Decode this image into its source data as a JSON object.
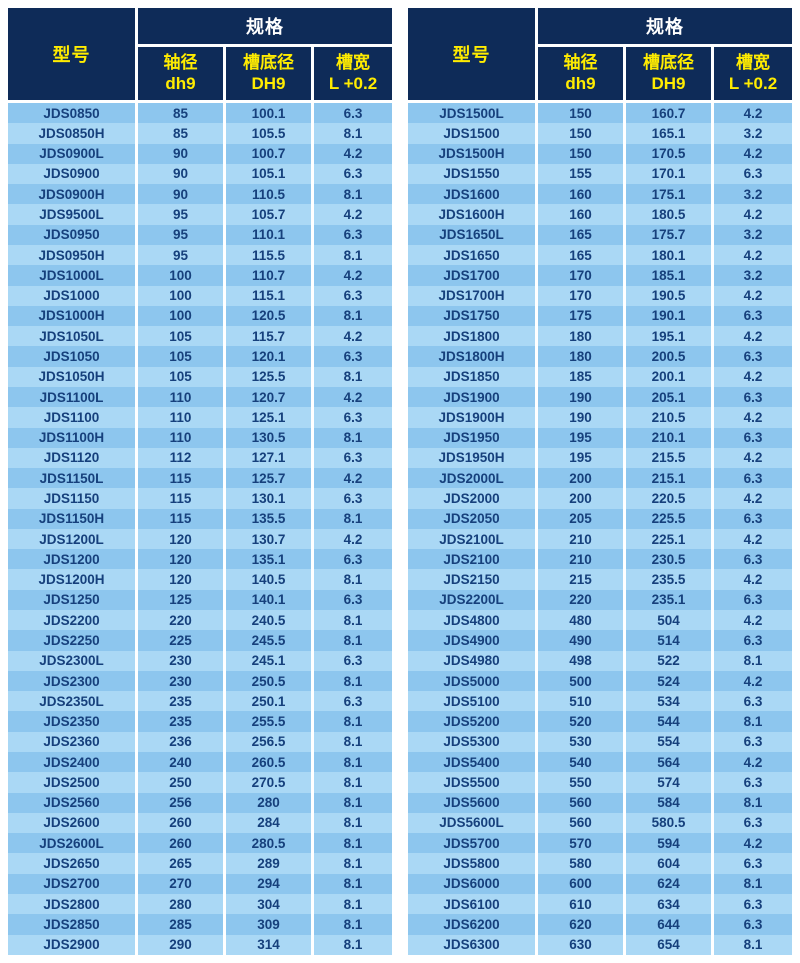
{
  "colors": {
    "header_background": "#0e2b58",
    "header_text_yellow": "#ffec00",
    "header_text_white": "#ffffff",
    "row_medium_blue": "#8dc6ee",
    "row_light_blue": "#aad8f5",
    "cell_text": "#16407c",
    "separator": "#ffffff"
  },
  "header": {
    "model_label": "型号",
    "spec_label": "规格",
    "sub_columns": [
      {
        "title": "轴径",
        "subtitle": "dh9"
      },
      {
        "title": "槽底径",
        "subtitle": "DH9"
      },
      {
        "title": "槽宽",
        "subtitle": "L +0.2"
      }
    ]
  },
  "tables": [
    {
      "id": "left",
      "rows": [
        [
          "JDS0850",
          "85",
          "100.1",
          "6.3"
        ],
        [
          "JDS0850H",
          "85",
          "105.5",
          "8.1"
        ],
        [
          "JDS0900L",
          "90",
          "100.7",
          "4.2"
        ],
        [
          "JDS0900",
          "90",
          "105.1",
          "6.3"
        ],
        [
          "JDS0900H",
          "90",
          "110.5",
          "8.1"
        ],
        [
          "JDS9500L",
          "95",
          "105.7",
          "4.2"
        ],
        [
          "JDS0950",
          "95",
          "110.1",
          "6.3"
        ],
        [
          "JDS0950H",
          "95",
          "115.5",
          "8.1"
        ],
        [
          "JDS1000L",
          "100",
          "110.7",
          "4.2"
        ],
        [
          "JDS1000",
          "100",
          "115.1",
          "6.3"
        ],
        [
          "JDS1000H",
          "100",
          "120.5",
          "8.1"
        ],
        [
          "JDS1050L",
          "105",
          "115.7",
          "4.2"
        ],
        [
          "JDS1050",
          "105",
          "120.1",
          "6.3"
        ],
        [
          "JDS1050H",
          "105",
          "125.5",
          "8.1"
        ],
        [
          "JDS1100L",
          "110",
          "120.7",
          "4.2"
        ],
        [
          "JDS1100",
          "110",
          "125.1",
          "6.3"
        ],
        [
          "JDS1100H",
          "110",
          "130.5",
          "8.1"
        ],
        [
          "JDS1120",
          "112",
          "127.1",
          "6.3"
        ],
        [
          "JDS1150L",
          "115",
          "125.7",
          "4.2"
        ],
        [
          "JDS1150",
          "115",
          "130.1",
          "6.3"
        ],
        [
          "JDS1150H",
          "115",
          "135.5",
          "8.1"
        ],
        [
          "JDS1200L",
          "120",
          "130.7",
          "4.2"
        ],
        [
          "JDS1200",
          "120",
          "135.1",
          "6.3"
        ],
        [
          "JDS1200H",
          "120",
          "140.5",
          "8.1"
        ],
        [
          "JDS1250",
          "125",
          "140.1",
          "6.3"
        ],
        [
          "JDS2200",
          "220",
          "240.5",
          "8.1"
        ],
        [
          "JDS2250",
          "225",
          "245.5",
          "8.1"
        ],
        [
          "JDS2300L",
          "230",
          "245.1",
          "6.3"
        ],
        [
          "JDS2300",
          "230",
          "250.5",
          "8.1"
        ],
        [
          "JDS2350L",
          "235",
          "250.1",
          "6.3"
        ],
        [
          "JDS2350",
          "235",
          "255.5",
          "8.1"
        ],
        [
          "JDS2360",
          "236",
          "256.5",
          "8.1"
        ],
        [
          "JDS2400",
          "240",
          "260.5",
          "8.1"
        ],
        [
          "JDS2500",
          "250",
          "270.5",
          "8.1"
        ],
        [
          "JDS2560",
          "256",
          "280",
          "8.1"
        ],
        [
          "JDS2600",
          "260",
          "284",
          "8.1"
        ],
        [
          "JDS2600L",
          "260",
          "280.5",
          "8.1"
        ],
        [
          "JDS2650",
          "265",
          "289",
          "8.1"
        ],
        [
          "JDS2700",
          "270",
          "294",
          "8.1"
        ],
        [
          "JDS2800",
          "280",
          "304",
          "8.1"
        ],
        [
          "JDS2850",
          "285",
          "309",
          "8.1"
        ],
        [
          "JDS2900",
          "290",
          "314",
          "8.1"
        ]
      ]
    },
    {
      "id": "right",
      "rows": [
        [
          "JDS1500L",
          "150",
          "160.7",
          "4.2"
        ],
        [
          "JDS1500",
          "150",
          "165.1",
          "3.2"
        ],
        [
          "JDS1500H",
          "150",
          "170.5",
          "4.2"
        ],
        [
          "JDS1550",
          "155",
          "170.1",
          "6.3"
        ],
        [
          "JDS1600",
          "160",
          "175.1",
          "3.2"
        ],
        [
          "JDS1600H",
          "160",
          "180.5",
          "4.2"
        ],
        [
          "JDS1650L",
          "165",
          "175.7",
          "3.2"
        ],
        [
          "JDS1650",
          "165",
          "180.1",
          "4.2"
        ],
        [
          "JDS1700",
          "170",
          "185.1",
          "3.2"
        ],
        [
          "JDS1700H",
          "170",
          "190.5",
          "4.2"
        ],
        [
          "JDS1750",
          "175",
          "190.1",
          "6.3"
        ],
        [
          "JDS1800",
          "180",
          "195.1",
          "4.2"
        ],
        [
          "JDS1800H",
          "180",
          "200.5",
          "6.3"
        ],
        [
          "JDS1850",
          "185",
          "200.1",
          "4.2"
        ],
        [
          "JDS1900",
          "190",
          "205.1",
          "6.3"
        ],
        [
          "JDS1900H",
          "190",
          "210.5",
          "4.2"
        ],
        [
          "JDS1950",
          "195",
          "210.1",
          "6.3"
        ],
        [
          "JDS1950H",
          "195",
          "215.5",
          "4.2"
        ],
        [
          "JDS2000L",
          "200",
          "215.1",
          "6.3"
        ],
        [
          "JDS2000",
          "200",
          "220.5",
          "4.2"
        ],
        [
          "JDS2050",
          "205",
          "225.5",
          "6.3"
        ],
        [
          "JDS2100L",
          "210",
          "225.1",
          "4.2"
        ],
        [
          "JDS2100",
          "210",
          "230.5",
          "6.3"
        ],
        [
          "JDS2150",
          "215",
          "235.5",
          "4.2"
        ],
        [
          "JDS2200L",
          "220",
          "235.1",
          "6.3"
        ],
        [
          "JDS4800",
          "480",
          "504",
          "4.2"
        ],
        [
          "JDS4900",
          "490",
          "514",
          "6.3"
        ],
        [
          "JDS4980",
          "498",
          "522",
          "8.1"
        ],
        [
          "JDS5000",
          "500",
          "524",
          "4.2"
        ],
        [
          "JDS5100",
          "510",
          "534",
          "6.3"
        ],
        [
          "JDS5200",
          "520",
          "544",
          "8.1"
        ],
        [
          "JDS5300",
          "530",
          "554",
          "6.3"
        ],
        [
          "JDS5400",
          "540",
          "564",
          "4.2"
        ],
        [
          "JDS5500",
          "550",
          "574",
          "6.3"
        ],
        [
          "JDS5600",
          "560",
          "584",
          "8.1"
        ],
        [
          "JDS5600L",
          "560",
          "580.5",
          "6.3"
        ],
        [
          "JDS5700",
          "570",
          "594",
          "4.2"
        ],
        [
          "JDS5800",
          "580",
          "604",
          "6.3"
        ],
        [
          "JDS6000",
          "600",
          "624",
          "8.1"
        ],
        [
          "JDS6100",
          "610",
          "634",
          "6.3"
        ],
        [
          "JDS6200",
          "620",
          "644",
          "6.3"
        ],
        [
          "JDS6300",
          "630",
          "654",
          "8.1"
        ]
      ]
    }
  ]
}
